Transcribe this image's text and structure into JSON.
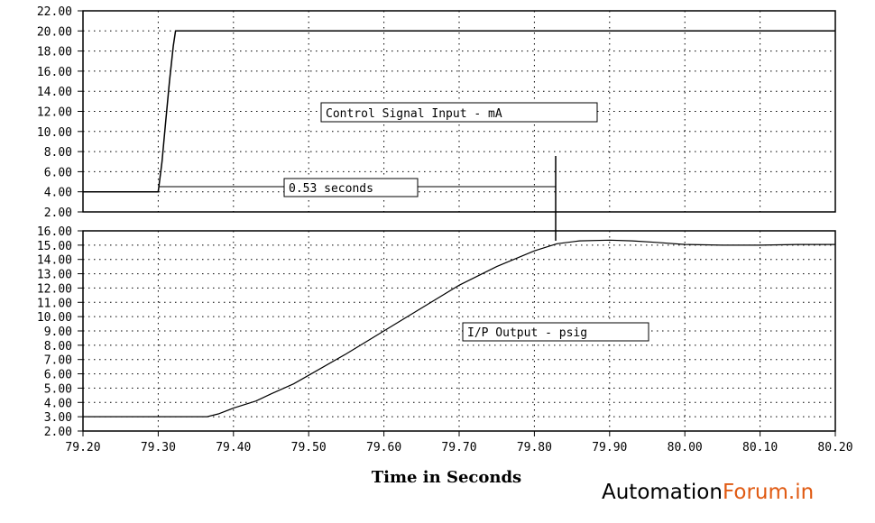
{
  "chart_data": [
    {
      "type": "line",
      "name": "top",
      "title": "",
      "annotation_label": "Control Signal Input - mA",
      "delay_label": "0.53 seconds",
      "xlim": [
        79.2,
        80.2
      ],
      "ylim": [
        2.0,
        22.0
      ],
      "y_ticks": [
        "2.00",
        "4.00",
        "6.00",
        "8.00",
        "10.00",
        "12.00",
        "14.00",
        "16.00",
        "18.00",
        "20.00",
        "22.00"
      ],
      "grid": true,
      "series": [
        {
          "x": [
            79.2,
            79.3,
            79.305,
            79.31,
            79.315,
            79.32,
            79.323,
            79.4,
            79.5,
            79.6,
            79.7,
            79.8,
            79.9,
            80.0,
            80.1,
            80.2
          ],
          "y": [
            4.0,
            4.0,
            7.0,
            11.0,
            15.0,
            18.5,
            20.0,
            20.0,
            20.0,
            20.0,
            20.0,
            20.0,
            20.0,
            20.0,
            20.0,
            20.0
          ]
        }
      ]
    },
    {
      "type": "line",
      "name": "bottom",
      "title": "",
      "xlabel": "Time in Seconds",
      "annotation_label": "I/P Output - psig",
      "xlim": [
        79.2,
        80.2
      ],
      "ylim": [
        2.0,
        16.0
      ],
      "x_ticks": [
        "79.20",
        "79.30",
        "79.40",
        "79.50",
        "79.60",
        "79.70",
        "79.80",
        "79.90",
        "80.00",
        "80.10",
        "80.20"
      ],
      "y_ticks": [
        "2.00",
        "3.00",
        "4.00",
        "5.00",
        "6.00",
        "7.00",
        "8.00",
        "9.00",
        "10.00",
        "11.00",
        "12.00",
        "13.00",
        "14.00",
        "15.00",
        "16.00"
      ],
      "grid": true,
      "series": [
        {
          "x": [
            79.2,
            79.3,
            79.365,
            79.38,
            79.4,
            79.43,
            79.45,
            79.48,
            79.5,
            79.55,
            79.6,
            79.65,
            79.7,
            79.75,
            79.8,
            79.83,
            79.86,
            79.9,
            79.93,
            79.96,
            80.0,
            80.05,
            80.1,
            80.15,
            80.2
          ],
          "y": [
            3.0,
            3.0,
            3.0,
            3.2,
            3.6,
            4.1,
            4.6,
            5.3,
            5.9,
            7.4,
            9.0,
            10.6,
            12.2,
            13.5,
            14.6,
            15.1,
            15.3,
            15.35,
            15.3,
            15.2,
            15.05,
            15.0,
            15.0,
            15.05,
            15.05
          ]
        }
      ]
    }
  ],
  "watermark": {
    "part1": "Automation",
    "part2": "Forum.in",
    "accent_color": "#e05a12"
  }
}
